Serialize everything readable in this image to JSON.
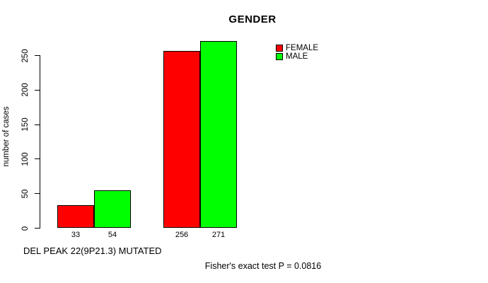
{
  "chart_data": {
    "type": "bar",
    "title": "GENDER",
    "ylabel": "number of cases",
    "xlabel": "DEL PEAK 22(9P21.3) MUTATED",
    "annotation": "Fisher's exact test P = 0.0816",
    "ylim": [
      0,
      250
    ],
    "yticks": [
      0,
      50,
      100,
      150,
      200,
      250
    ],
    "grid": false,
    "legend_position": "top-right-inside",
    "n_groups": 2,
    "series": [
      {
        "name": "FEMALE",
        "color": "#ff0000",
        "values": [
          33,
          256
        ]
      },
      {
        "name": "MALE",
        "color": "#00ff00",
        "values": [
          54,
          271
        ]
      }
    ],
    "bar_value_labels": [
      [
        "33",
        "256"
      ],
      [
        "54",
        "271"
      ]
    ],
    "background_color": "#ffffff",
    "text_color": "#000000"
  }
}
